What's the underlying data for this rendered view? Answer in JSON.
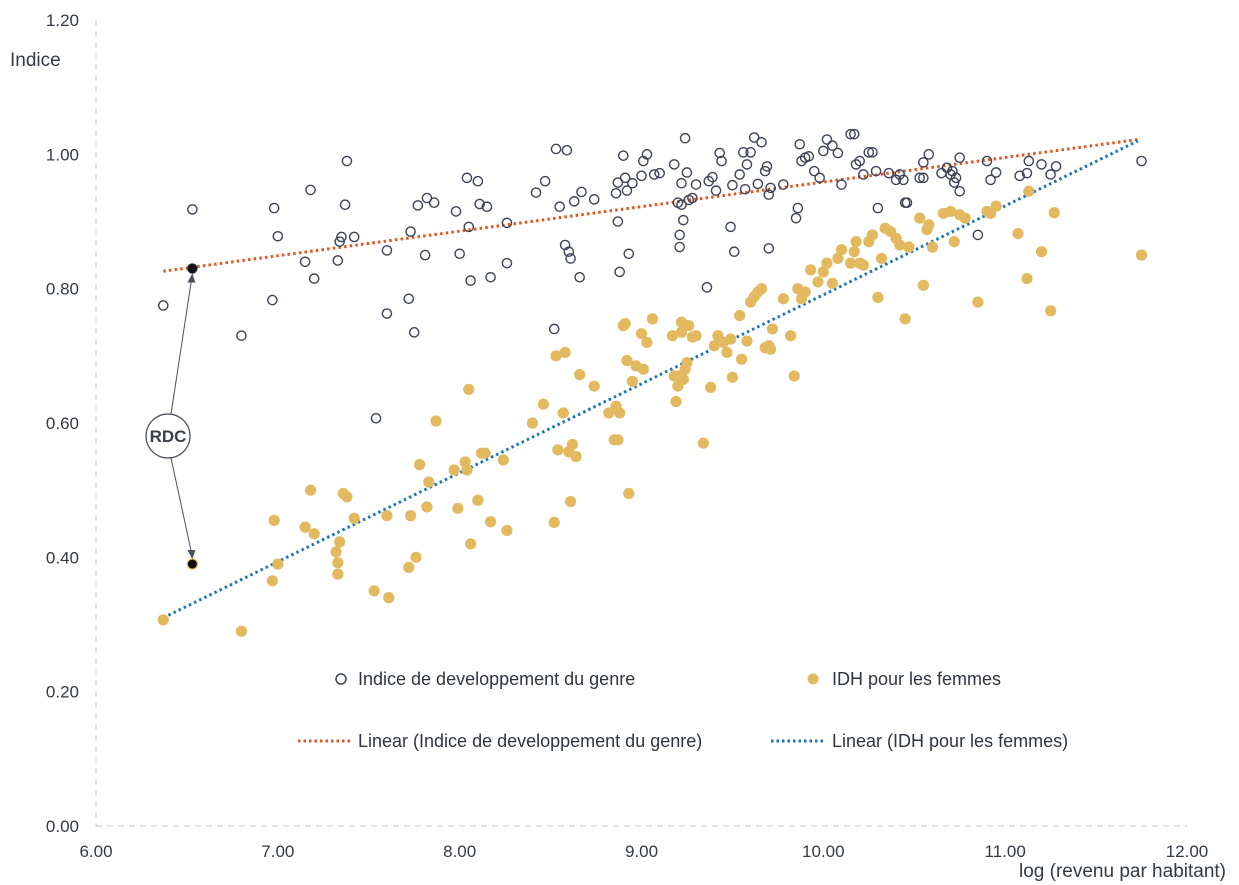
{
  "chart_data": {
    "type": "scatter",
    "title": "",
    "ylabel": "Indice",
    "xlabel": "log (revenu par habitant)",
    "xlim": [
      6.0,
      12.0
    ],
    "ylim": [
      0.0,
      1.2
    ],
    "xticks": [
      "6.00",
      "7.00",
      "8.00",
      "9.00",
      "10.00",
      "11.00",
      "12.00"
    ],
    "yticks": [
      "0.00",
      "0.20",
      "0.40",
      "0.60",
      "0.80",
      "1.00",
      "1.20"
    ],
    "grid": false,
    "annotation": {
      "label": "RDC",
      "x": 6.53,
      "y_gdi": 0.83,
      "y_hdi_f": 0.39
    },
    "colors": {
      "gdi_marker": "#3e4458",
      "hdi_f_marker": "#e2b95e",
      "gdi_trend": "#e2561e",
      "hdi_f_trend": "#1a75b4",
      "axis": "#cfd3d8",
      "text": "#333a44"
    },
    "legend": {
      "gdi_label": "Indice de developpement du genre",
      "hdi_f_label": "IDH pour les femmes",
      "gdi_trend_label": "Linear (Indice de developpement du genre)",
      "hdi_f_trend_label": "Linear (IDH pour les femmes)"
    },
    "trendlines": [
      {
        "name": "Linear (Indice de developpement du genre)",
        "x": [
          6.37,
          11.73
        ],
        "y": [
          0.826,
          1.022
        ]
      },
      {
        "name": "Linear (IDH pour les femmes)",
        "x": [
          6.37,
          11.73
        ],
        "y": [
          0.31,
          1.02
        ]
      }
    ],
    "series": [
      {
        "name": "Indice de developpement du genre",
        "marker": "open-circle",
        "points": [
          [
            6.37,
            0.775
          ],
          [
            6.53,
            0.918
          ],
          [
            6.53,
            0.83
          ],
          [
            6.8,
            0.73
          ],
          [
            6.97,
            0.783
          ],
          [
            6.98,
            0.92
          ],
          [
            7.0,
            0.878
          ],
          [
            7.15,
            0.84
          ],
          [
            7.18,
            0.947
          ],
          [
            7.2,
            0.815
          ],
          [
            7.33,
            0.842
          ],
          [
            7.34,
            0.87
          ],
          [
            7.35,
            0.877
          ],
          [
            7.37,
            0.925
          ],
          [
            7.38,
            0.99
          ],
          [
            7.42,
            0.877
          ],
          [
            7.54,
            0.607
          ],
          [
            7.6,
            0.763
          ],
          [
            7.6,
            0.857
          ],
          [
            7.72,
            0.785
          ],
          [
            7.73,
            0.885
          ],
          [
            7.75,
            0.735
          ],
          [
            7.77,
            0.924
          ],
          [
            7.81,
            0.85
          ],
          [
            7.82,
            0.935
          ],
          [
            7.86,
            0.928
          ],
          [
            7.98,
            0.915
          ],
          [
            8.0,
            0.852
          ],
          [
            8.04,
            0.965
          ],
          [
            8.05,
            0.892
          ],
          [
            8.06,
            0.812
          ],
          [
            8.1,
            0.96
          ],
          [
            8.11,
            0.926
          ],
          [
            8.15,
            0.922
          ],
          [
            8.17,
            0.817
          ],
          [
            8.26,
            0.898
          ],
          [
            8.26,
            0.838
          ],
          [
            8.42,
            0.943
          ],
          [
            8.47,
            0.96
          ],
          [
            8.52,
            0.74
          ],
          [
            8.53,
            1.008
          ],
          [
            8.55,
            0.922
          ],
          [
            8.58,
            0.865
          ],
          [
            8.59,
            1.006
          ],
          [
            8.6,
            0.855
          ],
          [
            8.61,
            0.845
          ],
          [
            8.63,
            0.93
          ],
          [
            8.66,
            0.817
          ],
          [
            8.67,
            0.944
          ],
          [
            8.74,
            0.933
          ],
          [
            8.86,
            0.942
          ],
          [
            8.87,
            0.9
          ],
          [
            8.87,
            0.958
          ],
          [
            8.88,
            0.825
          ],
          [
            8.9,
            0.998
          ],
          [
            8.91,
            0.965
          ],
          [
            8.92,
            0.946
          ],
          [
            8.93,
            0.852
          ],
          [
            8.95,
            0.957
          ],
          [
            9.0,
            0.968
          ],
          [
            9.01,
            0.99
          ],
          [
            9.03,
            1.0
          ],
          [
            9.07,
            0.97
          ],
          [
            9.1,
            0.972
          ],
          [
            9.18,
            0.985
          ],
          [
            9.2,
            0.928
          ],
          [
            9.21,
            0.88
          ],
          [
            9.21,
            0.862
          ],
          [
            9.22,
            0.925
          ],
          [
            9.22,
            0.957
          ],
          [
            9.23,
            0.902
          ],
          [
            9.24,
            1.024
          ],
          [
            9.25,
            0.973
          ],
          [
            9.26,
            0.932
          ],
          [
            9.28,
            0.935
          ],
          [
            9.3,
            0.955
          ],
          [
            9.36,
            0.802
          ],
          [
            9.37,
            0.96
          ],
          [
            9.39,
            0.966
          ],
          [
            9.41,
            0.946
          ],
          [
            9.43,
            1.002
          ],
          [
            9.44,
            0.99
          ],
          [
            9.49,
            0.892
          ],
          [
            9.5,
            0.954
          ],
          [
            9.51,
            0.855
          ],
          [
            9.54,
            0.97
          ],
          [
            9.56,
            1.003
          ],
          [
            9.57,
            0.948
          ],
          [
            9.58,
            0.985
          ],
          [
            9.6,
            1.003
          ],
          [
            9.62,
            1.025
          ],
          [
            9.64,
            0.956
          ],
          [
            9.66,
            1.018
          ],
          [
            9.68,
            0.975
          ],
          [
            9.69,
            0.982
          ],
          [
            9.7,
            0.94
          ],
          [
            9.71,
            0.95
          ],
          [
            9.7,
            0.86
          ],
          [
            9.78,
            0.955
          ],
          [
            9.85,
            0.905
          ],
          [
            9.86,
            0.92
          ],
          [
            9.87,
            1.015
          ],
          [
            9.88,
            0.99
          ],
          [
            9.9,
            0.995
          ],
          [
            9.92,
            0.997
          ],
          [
            9.95,
            0.975
          ],
          [
            9.98,
            0.965
          ],
          [
            10.0,
            1.005
          ],
          [
            10.02,
            1.022
          ],
          [
            10.05,
            1.013
          ],
          [
            10.08,
            1.002
          ],
          [
            10.1,
            0.955
          ],
          [
            10.15,
            1.03
          ],
          [
            10.17,
            1.03
          ],
          [
            10.18,
            0.985
          ],
          [
            10.2,
            0.99
          ],
          [
            10.22,
            0.97
          ],
          [
            10.25,
            1.003
          ],
          [
            10.27,
            1.003
          ],
          [
            10.29,
            0.975
          ],
          [
            10.3,
            0.92
          ],
          [
            10.36,
            0.972
          ],
          [
            10.4,
            0.962
          ],
          [
            10.42,
            0.97
          ],
          [
            10.44,
            0.962
          ],
          [
            10.45,
            0.928
          ],
          [
            10.46,
            0.928
          ],
          [
            10.53,
            0.965
          ],
          [
            10.55,
            0.965
          ],
          [
            10.55,
            0.988
          ],
          [
            10.58,
            1.0
          ],
          [
            10.65,
            0.972
          ],
          [
            10.68,
            0.98
          ],
          [
            10.7,
            0.97
          ],
          [
            10.71,
            0.975
          ],
          [
            10.72,
            0.958
          ],
          [
            10.73,
            0.965
          ],
          [
            10.75,
            0.995
          ],
          [
            10.75,
            0.945
          ],
          [
            10.85,
            0.88
          ],
          [
            10.9,
            0.99
          ],
          [
            10.92,
            0.962
          ],
          [
            10.95,
            0.973
          ],
          [
            11.08,
            0.968
          ],
          [
            11.12,
            0.972
          ],
          [
            11.13,
            0.99
          ],
          [
            11.2,
            0.985
          ],
          [
            11.25,
            0.97
          ],
          [
            11.28,
            0.982
          ],
          [
            11.75,
            0.99
          ]
        ]
      },
      {
        "name": "IDH pour les femmes",
        "marker": "filled-circle",
        "points": [
          [
            6.37,
            0.307
          ],
          [
            6.53,
            0.39
          ],
          [
            6.8,
            0.29
          ],
          [
            6.97,
            0.365
          ],
          [
            6.98,
            0.455
          ],
          [
            7.0,
            0.39
          ],
          [
            7.15,
            0.445
          ],
          [
            7.18,
            0.5
          ],
          [
            7.2,
            0.435
          ],
          [
            7.32,
            0.408
          ],
          [
            7.33,
            0.375
          ],
          [
            7.33,
            0.392
          ],
          [
            7.34,
            0.423
          ],
          [
            7.36,
            0.495
          ],
          [
            7.38,
            0.49
          ],
          [
            7.42,
            0.458
          ],
          [
            7.53,
            0.35
          ],
          [
            7.6,
            0.462
          ],
          [
            7.61,
            0.34
          ],
          [
            7.72,
            0.385
          ],
          [
            7.73,
            0.462
          ],
          [
            7.76,
            0.4
          ],
          [
            7.78,
            0.538
          ],
          [
            7.82,
            0.475
          ],
          [
            7.83,
            0.512
          ],
          [
            7.87,
            0.603
          ],
          [
            7.97,
            0.53
          ],
          [
            7.99,
            0.473
          ],
          [
            8.03,
            0.542
          ],
          [
            8.04,
            0.53
          ],
          [
            8.05,
            0.65
          ],
          [
            8.06,
            0.42
          ],
          [
            8.1,
            0.485
          ],
          [
            8.12,
            0.555
          ],
          [
            8.14,
            0.555
          ],
          [
            8.17,
            0.453
          ],
          [
            8.24,
            0.545
          ],
          [
            8.26,
            0.44
          ],
          [
            8.4,
            0.6
          ],
          [
            8.46,
            0.628
          ],
          [
            8.52,
            0.452
          ],
          [
            8.53,
            0.7
          ],
          [
            8.54,
            0.56
          ],
          [
            8.57,
            0.615
          ],
          [
            8.58,
            0.705
          ],
          [
            8.6,
            0.557
          ],
          [
            8.61,
            0.483
          ],
          [
            8.62,
            0.568
          ],
          [
            8.64,
            0.55
          ],
          [
            8.66,
            0.672
          ],
          [
            8.74,
            0.655
          ],
          [
            8.82,
            0.615
          ],
          [
            8.85,
            0.575
          ],
          [
            8.86,
            0.625
          ],
          [
            8.87,
            0.575
          ],
          [
            8.88,
            0.615
          ],
          [
            8.9,
            0.745
          ],
          [
            8.91,
            0.748
          ],
          [
            8.92,
            0.693
          ],
          [
            8.93,
            0.495
          ],
          [
            8.95,
            0.662
          ],
          [
            8.97,
            0.685
          ],
          [
            9.0,
            0.733
          ],
          [
            9.01,
            0.68
          ],
          [
            9.03,
            0.72
          ],
          [
            9.06,
            0.755
          ],
          [
            9.17,
            0.73
          ],
          [
            9.18,
            0.67
          ],
          [
            9.19,
            0.632
          ],
          [
            9.2,
            0.655
          ],
          [
            9.21,
            0.67
          ],
          [
            9.22,
            0.75
          ],
          [
            9.22,
            0.735
          ],
          [
            9.23,
            0.665
          ],
          [
            9.24,
            0.68
          ],
          [
            9.25,
            0.69
          ],
          [
            9.26,
            0.745
          ],
          [
            9.28,
            0.728
          ],
          [
            9.3,
            0.73
          ],
          [
            9.34,
            0.57
          ],
          [
            9.38,
            0.653
          ],
          [
            9.4,
            0.715
          ],
          [
            9.42,
            0.73
          ],
          [
            9.45,
            0.72
          ],
          [
            9.47,
            0.705
          ],
          [
            9.49,
            0.725
          ],
          [
            9.5,
            0.668
          ],
          [
            9.54,
            0.76
          ],
          [
            9.55,
            0.695
          ],
          [
            9.58,
            0.722
          ],
          [
            9.6,
            0.78
          ],
          [
            9.62,
            0.788
          ],
          [
            9.64,
            0.795
          ],
          [
            9.66,
            0.8
          ],
          [
            9.68,
            0.712
          ],
          [
            9.7,
            0.715
          ],
          [
            9.71,
            0.71
          ],
          [
            9.72,
            0.74
          ],
          [
            9.78,
            0.785
          ],
          [
            9.82,
            0.73
          ],
          [
            9.84,
            0.67
          ],
          [
            9.86,
            0.8
          ],
          [
            9.88,
            0.785
          ],
          [
            9.9,
            0.795
          ],
          [
            9.93,
            0.828
          ],
          [
            9.97,
            0.81
          ],
          [
            10.0,
            0.825
          ],
          [
            10.02,
            0.838
          ],
          [
            10.05,
            0.808
          ],
          [
            10.08,
            0.845
          ],
          [
            10.1,
            0.858
          ],
          [
            10.15,
            0.838
          ],
          [
            10.17,
            0.855
          ],
          [
            10.18,
            0.87
          ],
          [
            10.2,
            0.838
          ],
          [
            10.22,
            0.835
          ],
          [
            10.25,
            0.87
          ],
          [
            10.27,
            0.88
          ],
          [
            10.3,
            0.787
          ],
          [
            10.32,
            0.845
          ],
          [
            10.34,
            0.89
          ],
          [
            10.37,
            0.885
          ],
          [
            10.4,
            0.875
          ],
          [
            10.42,
            0.865
          ],
          [
            10.45,
            0.755
          ],
          [
            10.47,
            0.862
          ],
          [
            10.53,
            0.905
          ],
          [
            10.55,
            0.805
          ],
          [
            10.57,
            0.888
          ],
          [
            10.58,
            0.895
          ],
          [
            10.6,
            0.862
          ],
          [
            10.66,
            0.912
          ],
          [
            10.7,
            0.915
          ],
          [
            10.72,
            0.87
          ],
          [
            10.75,
            0.91
          ],
          [
            10.78,
            0.905
          ],
          [
            10.85,
            0.78
          ],
          [
            10.9,
            0.915
          ],
          [
            10.92,
            0.912
          ],
          [
            10.95,
            0.923
          ],
          [
            11.07,
            0.882
          ],
          [
            11.12,
            0.815
          ],
          [
            11.13,
            0.945
          ],
          [
            11.2,
            0.855
          ],
          [
            11.25,
            0.767
          ],
          [
            11.27,
            0.913
          ],
          [
            11.75,
            0.85
          ]
        ]
      }
    ]
  }
}
